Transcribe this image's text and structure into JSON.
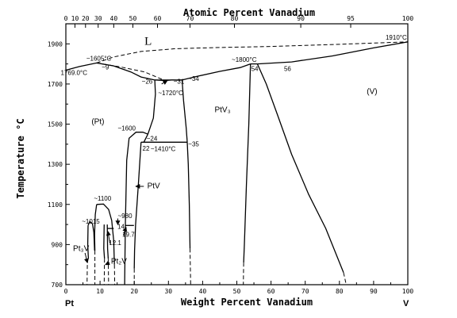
{
  "chart_data": {
    "type": "phase-diagram",
    "title": "",
    "xlabel": "Weight Percent Vanadium",
    "x2label": "Atomic Percent Vanadium",
    "ylabel": "Temperature °C",
    "xlim": [
      0,
      100
    ],
    "ylim": [
      700,
      2000
    ],
    "xticks": [
      0,
      10,
      20,
      30,
      40,
      50,
      60,
      70,
      80,
      90,
      100
    ],
    "yticks": [
      700,
      900,
      1100,
      1300,
      1500,
      1700,
      1900
    ],
    "x2ticks": [
      {
        "wt": 0,
        "label": "0"
      },
      {
        "wt": 2.66,
        "label": "10"
      },
      {
        "wt": 5.75,
        "label": "20"
      },
      {
        "wt": 9.45,
        "label": "30"
      },
      {
        "wt": 14.0,
        "label": "40"
      },
      {
        "wt": 19.6,
        "label": "50"
      },
      {
        "wt": 26.8,
        "label": "60"
      },
      {
        "wt": 36.3,
        "label": "70"
      },
      {
        "wt": 49.3,
        "label": "80"
      },
      {
        "wt": 68.7,
        "label": "90"
      },
      {
        "wt": 83.3,
        "label": "95"
      },
      {
        "wt": 100,
        "label": "100"
      }
    ],
    "end_labels": {
      "left": "Pt",
      "right": "V"
    },
    "annotations": [
      {
        "text": "L",
        "x": 23,
        "y": 1895,
        "cls": "big"
      },
      {
        "text": "(Pt)",
        "x": 7.5,
        "y": 1500,
        "cls": "phase"
      },
      {
        "text": "PtV₃",
        "x": 43.5,
        "y": 1560,
        "cls": "phase"
      },
      {
        "text": "(V)",
        "x": 88,
        "y": 1650,
        "cls": "phase"
      },
      {
        "text": "~1605°C",
        "x": 6,
        "y": 1817,
        "cls": "anno"
      },
      {
        "text": "~9",
        "x": 10.5,
        "y": 1772,
        "cls": "anno"
      },
      {
        "text": "1769.0°C",
        "x": -1.5,
        "y": 1745,
        "cls": "anno"
      },
      {
        "text": "~26",
        "x": 22.2,
        "y": 1702,
        "cls": "anno"
      },
      {
        "text": "~31",
        "x": 31.5,
        "y": 1702,
        "cls": "anno"
      },
      {
        "text": "~34",
        "x": 35.8,
        "y": 1715,
        "cls": "anno"
      },
      {
        "text": "~1720°C",
        "x": 27,
        "y": 1645,
        "cls": "anno"
      },
      {
        "text": "~1800°C",
        "x": 48.5,
        "y": 1810,
        "cls": "anno"
      },
      {
        "text": "54",
        "x": 54.2,
        "y": 1765,
        "cls": "anno"
      },
      {
        "text": "56",
        "x": 63.8,
        "y": 1765,
        "cls": "anno"
      },
      {
        "text": "1910°C",
        "x": 93.5,
        "y": 1920,
        "cls": "anno"
      },
      {
        "text": "~1600",
        "x": 15.2,
        "y": 1468,
        "cls": "anno"
      },
      {
        "text": "~24",
        "x": 23.6,
        "y": 1418,
        "cls": "anno"
      },
      {
        "text": "22",
        "x": 22.4,
        "y": 1368,
        "cls": "anno"
      },
      {
        "text": "~1410°C",
        "x": 24.8,
        "y": 1365,
        "cls": "anno"
      },
      {
        "text": "~35",
        "x": 35.8,
        "y": 1390,
        "cls": "anno"
      },
      {
        "text": "PtV",
        "x": 23.8,
        "y": 1180,
        "cls": "phase"
      },
      {
        "text": "~1100",
        "x": 8.2,
        "y": 1118,
        "cls": "anno"
      },
      {
        "text": "~980",
        "x": 15.2,
        "y": 1032,
        "cls": "anno"
      },
      {
        "text": "~1015",
        "x": 4.7,
        "y": 1005,
        "cls": "anno"
      },
      {
        "text": "14",
        "x": 15.1,
        "y": 978,
        "cls": "anno"
      },
      {
        "text": "19.7",
        "x": 16.5,
        "y": 940,
        "cls": "anno"
      },
      {
        "text": "12.1",
        "x": 12.6,
        "y": 898,
        "cls": "anno"
      },
      {
        "text": "Pt₃V",
        "x": 2.1,
        "y": 867,
        "cls": "phase"
      },
      {
        "text": "Pt₂V",
        "x": 13.2,
        "y": 805,
        "cls": "phase"
      }
    ],
    "solid_curves": [
      [
        [
          0,
          1769
        ],
        [
          4,
          1787
        ],
        [
          9,
          1805
        ],
        [
          14,
          1790
        ],
        [
          19,
          1760
        ],
        [
          22,
          1735
        ],
        [
          26,
          1720
        ]
      ],
      [
        [
          26,
          1720
        ],
        [
          29,
          1717
        ],
        [
          31,
          1720
        ]
      ],
      [
        [
          31,
          1720
        ],
        [
          33,
          1719
        ],
        [
          34,
          1720
        ]
      ],
      [
        [
          34,
          1720
        ],
        [
          38,
          1737
        ],
        [
          45,
          1763
        ],
        [
          51,
          1782
        ],
        [
          54,
          1800
        ]
      ],
      [
        [
          54,
          1800
        ],
        [
          56,
          1800
        ]
      ],
      [
        [
          56,
          1800
        ],
        [
          66,
          1810
        ],
        [
          78,
          1840
        ],
        [
          90,
          1880
        ],
        [
          100,
          1910
        ]
      ],
      [
        [
          26,
          1720
        ],
        [
          34,
          1720
        ]
      ],
      [
        [
          26,
          1720
        ],
        [
          26.2,
          1650
        ],
        [
          25.6,
          1530
        ],
        [
          24,
          1450
        ]
      ],
      [
        [
          34,
          1720
        ],
        [
          34.4,
          1620
        ],
        [
          35.2,
          1480
        ],
        [
          35.5,
          1410
        ]
      ],
      [
        [
          22,
          1410
        ],
        [
          35.5,
          1410
        ]
      ],
      [
        [
          24,
          1450
        ],
        [
          22.5,
          1460
        ],
        [
          20.5,
          1460
        ],
        [
          18.5,
          1430
        ],
        [
          17.8,
          1320
        ],
        [
          17.4,
          1000
        ],
        [
          17.2,
          700
        ]
      ],
      [
        [
          22,
          1410
        ],
        [
          21.2,
          1200
        ],
        [
          20.4,
          1000
        ],
        [
          20.1,
          870
        ],
        [
          20,
          780
        ]
      ],
      [
        [
          24,
          1450
        ],
        [
          22.8,
          1410
        ]
      ],
      [
        [
          35.5,
          1410
        ],
        [
          35.8,
          1300
        ],
        [
          36.1,
          1100
        ],
        [
          36.3,
          880
        ]
      ],
      [
        [
          54,
          1800
        ],
        [
          53.5,
          1500
        ],
        [
          52.8,
          1200
        ],
        [
          52.2,
          900
        ],
        [
          52,
          810
        ]
      ],
      [
        [
          56,
          1800
        ],
        [
          58.6,
          1700
        ],
        [
          61.8,
          1550
        ],
        [
          66,
          1350
        ],
        [
          71,
          1150
        ],
        [
          76,
          980
        ],
        [
          81.2,
          760
        ]
      ],
      [
        [
          17.4,
          995
        ],
        [
          19.9,
          995
        ]
      ],
      [
        [
          12.1,
          980
        ],
        [
          14,
          980
        ]
      ],
      [
        [
          9,
          1100
        ],
        [
          11,
          1102
        ],
        [
          12.5,
          1075
        ],
        [
          13.4,
          1020
        ],
        [
          14,
          920
        ],
        [
          14.2,
          800
        ]
      ],
      [
        [
          9,
          1100
        ],
        [
          8.6,
          1050
        ],
        [
          8.4,
          950
        ],
        [
          8.5,
          870
        ]
      ],
      [
        [
          6.5,
          995
        ],
        [
          7,
          1015
        ],
        [
          7.8,
          1003
        ],
        [
          8.2,
          960
        ],
        [
          8.4,
          870
        ]
      ],
      [
        [
          6.5,
          995
        ],
        [
          6.4,
          900
        ],
        [
          6.6,
          830
        ]
      ],
      [
        [
          11.2,
          1000
        ],
        [
          11.1,
          880
        ],
        [
          11.3,
          830
        ]
      ],
      [
        [
          12.1,
          1000
        ],
        [
          12.2,
          880
        ],
        [
          12.4,
          830
        ]
      ]
    ],
    "dashed_curves": [
      [
        [
          9,
          1805
        ],
        [
          14,
          1835
        ],
        [
          22,
          1862
        ],
        [
          32,
          1876
        ],
        [
          45,
          1882
        ],
        [
          60,
          1887
        ],
        [
          75,
          1895
        ],
        [
          100,
          1910
        ]
      ],
      [
        [
          9,
          1805
        ],
        [
          16,
          1785
        ],
        [
          23,
          1760
        ],
        [
          29,
          1717
        ]
      ],
      [
        [
          6.3,
          830
        ],
        [
          6.2,
          700
        ]
      ],
      [
        [
          8.5,
          870
        ],
        [
          8.5,
          700
        ]
      ],
      [
        [
          11.3,
          830
        ],
        [
          11.2,
          700
        ]
      ],
      [
        [
          12.4,
          830
        ],
        [
          12.5,
          700
        ]
      ],
      [
        [
          14.2,
          800
        ],
        [
          14.3,
          700
        ]
      ],
      [
        [
          20,
          780
        ],
        [
          20,
          700
        ]
      ],
      [
        [
          36.3,
          880
        ],
        [
          36.5,
          700
        ]
      ],
      [
        [
          52,
          810
        ],
        [
          51.9,
          700
        ]
      ],
      [
        [
          81.2,
          760
        ],
        [
          82,
          700
        ]
      ]
    ],
    "arrows": [
      {
        "from": [
          28,
          1700
        ],
        "to": [
          29.6,
          1716
        ]
      },
      {
        "from": [
          22.8,
          1190
        ],
        "to": [
          20.5,
          1190
        ]
      },
      {
        "from": [
          15.2,
          1030
        ],
        "to": [
          15.2,
          1000
        ]
      },
      {
        "from": [
          16.8,
          945
        ],
        "to": [
          17.6,
          985
        ]
      },
      {
        "from": [
          12.9,
          905
        ],
        "to": [
          12.3,
          965
        ]
      },
      {
        "from": [
          5.6,
          858
        ],
        "to": [
          6.3,
          810
        ]
      },
      {
        "from": [
          12.8,
          810
        ],
        "to": [
          11.6,
          800
        ]
      }
    ],
    "grid": false,
    "legend": "none"
  }
}
